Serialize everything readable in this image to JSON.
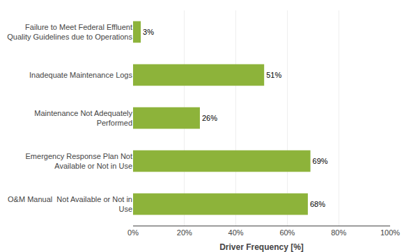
{
  "chart_data": {
    "type": "bar",
    "orientation": "horizontal",
    "categories": [
      "O&M Manual  Not Available or Not in\nUse",
      "Emergency Response Plan Not\nAvailable or Not in Use",
      "Maintenance Not Adequately\nPerformed",
      "Inadequate Maintenance Logs",
      "Failure to Meet Federal Effluent\nQuality Guidelines due to Operations"
    ],
    "values": [
      68,
      69,
      26,
      51,
      3
    ],
    "value_labels": [
      "68%",
      "69%",
      "26%",
      "51%",
      "3%"
    ],
    "data_labels": true,
    "color": "#8DB33A",
    "xlabel": "Driver Frequency [%]",
    "xlim": [
      0,
      100
    ],
    "xticks": [
      {
        "value": 0,
        "label": "0%"
      },
      {
        "value": 20,
        "label": "20%"
      },
      {
        "value": 40,
        "label": "40%"
      },
      {
        "value": 60,
        "label": "60%"
      },
      {
        "value": 80,
        "label": "80%"
      },
      {
        "value": 100,
        "label": "100%"
      }
    ],
    "grid": true
  }
}
